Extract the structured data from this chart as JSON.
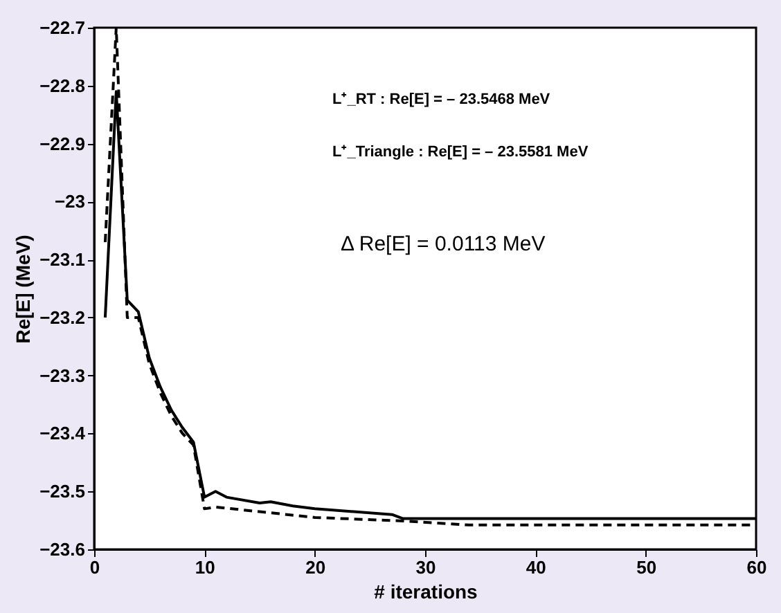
{
  "chart_data": {
    "type": "line",
    "xlabel": "# iterations",
    "ylabel": "Re[E] (MeV)",
    "xlim": [
      0,
      60
    ],
    "xticks": [
      0,
      10,
      20,
      30,
      40,
      50,
      60
    ],
    "ylim": [
      -23.6,
      -22.7
    ],
    "yticks": [
      -23.6,
      -23.5,
      -23.4,
      -23.3,
      -23.2,
      -23.1,
      -23,
      -22.9,
      -22.8,
      -22.7
    ],
    "grid": false,
    "marker": "none",
    "series": [
      {
        "color": "#000000",
        "line_style": "solid",
        "x": [
          1,
          2,
          3,
          4,
          5,
          6,
          7,
          8,
          9,
          10,
          11,
          12,
          15,
          16,
          18,
          20,
          27,
          28,
          60
        ],
        "values": [
          -23.2,
          -22.81,
          -23.17,
          -23.19,
          -23.27,
          -23.32,
          -23.36,
          -23.39,
          -23.415,
          -23.51,
          -23.5,
          -23.51,
          -23.52,
          -23.518,
          -23.525,
          -23.53,
          -23.54,
          -23.547,
          -23.547
        ]
      },
      {
        "color": "#000000",
        "line_style": "dashed",
        "x": [
          1,
          2,
          3,
          4,
          5,
          6,
          7,
          8,
          9,
          10,
          11,
          15,
          20,
          28,
          34,
          60
        ],
        "values": [
          -23.07,
          -22.7,
          -23.2,
          -23.2,
          -23.28,
          -23.33,
          -23.37,
          -23.4,
          -23.42,
          -23.53,
          -23.527,
          -23.535,
          -23.545,
          -23.551,
          -23.558,
          -23.558
        ]
      }
    ],
    "annotations": [
      "L⁺_RT : Re[E] = – 23.5468 MeV",
      "L⁺_Triangle : Re[E] = – 23.5581 MeV",
      "Δ Re[E] = 0.0113 MeV"
    ]
  }
}
